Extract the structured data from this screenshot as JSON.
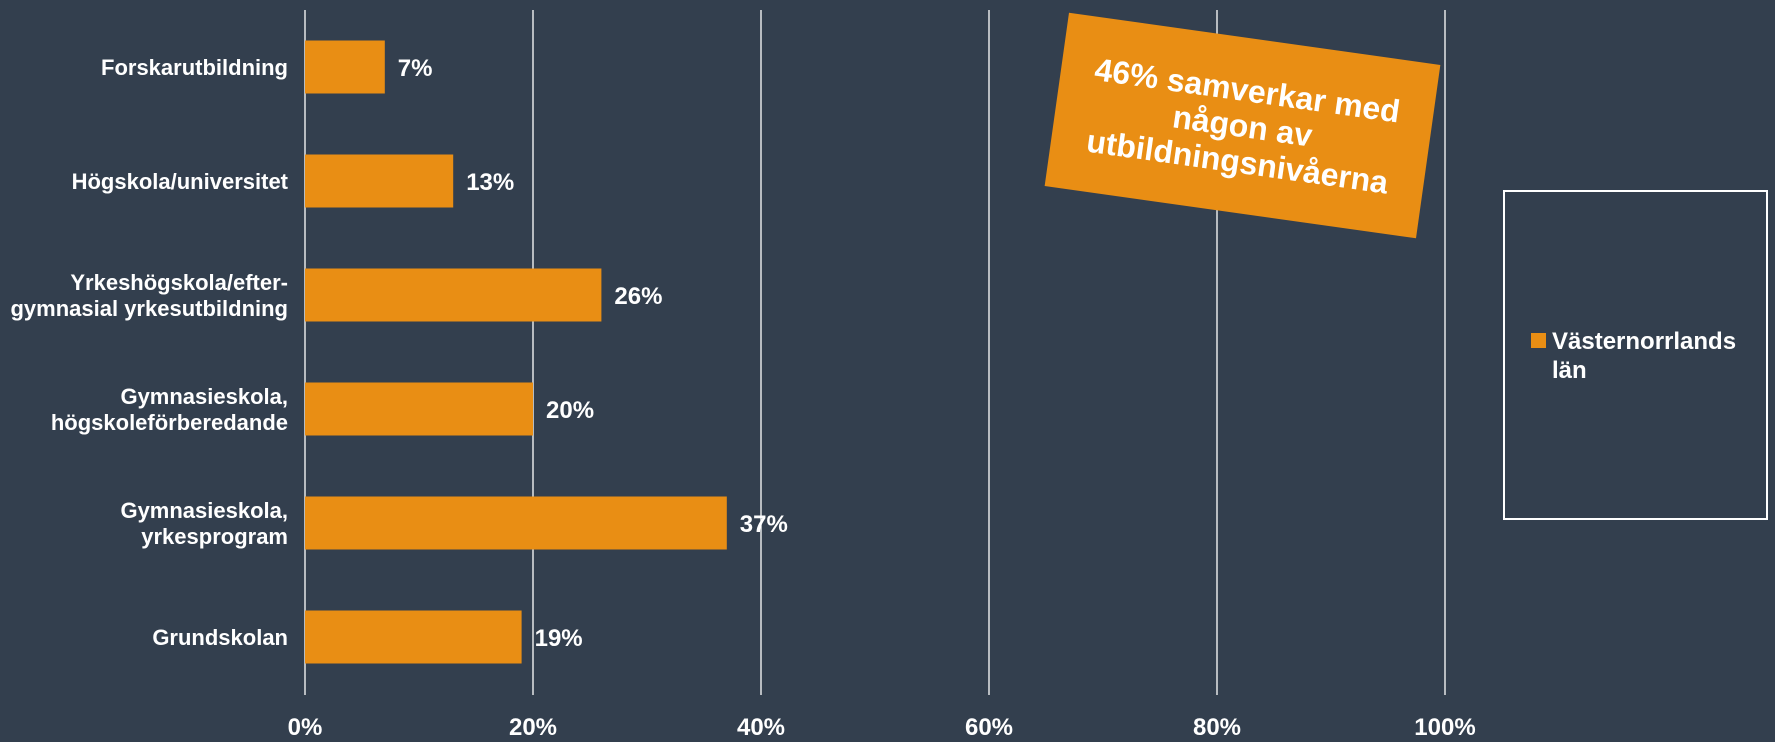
{
  "chart_data": {
    "type": "bar",
    "orientation": "horizontal",
    "categories": [
      "Forskarutbildning",
      "Högskola/universitet",
      "Yrkeshögskola/efter-gymnasial yrkesutbildning",
      "Gymnasieskola, högskoleförberedande",
      "Gymnasieskola, yrkesprogram",
      "Grundskolan"
    ],
    "category_lines": [
      [
        "Forskarutbildning"
      ],
      [
        "Högskola/universitet"
      ],
      [
        "Yrkeshögskola/efter-",
        "gymnasial yrkesutbildning"
      ],
      [
        "Gymnasieskola,",
        "högskoleförberedande"
      ],
      [
        "Gymnasieskola,",
        "yrkesprogram"
      ],
      [
        "Grundskolan"
      ]
    ],
    "series": [
      {
        "name": "Västernorrlands län",
        "values": [
          7,
          13,
          26,
          20,
          37,
          19
        ],
        "labels": [
          "7%",
          "13%",
          "26%",
          "20%",
          "37%",
          "19%"
        ],
        "color": "#e98e14"
      }
    ],
    "xlim": [
      0,
      100
    ],
    "xticks": [
      0,
      20,
      40,
      60,
      80,
      100
    ],
    "xtick_labels": [
      "0%",
      "20%",
      "40%",
      "60%",
      "80%",
      "100%"
    ],
    "grid": "vertical",
    "legend_position": "right",
    "annotation": "46% samverkar med någon av utbildningsnivåerna"
  },
  "style": {
    "background": "#333f4e",
    "bar_color": "#e98e14",
    "text_color": "#ffffff",
    "grid_color": "#ffffff"
  },
  "legend": {
    "label": "Västernorrlands län"
  },
  "callout": {
    "text": "46% samverkar med någon av utbildningsnivåerna"
  }
}
